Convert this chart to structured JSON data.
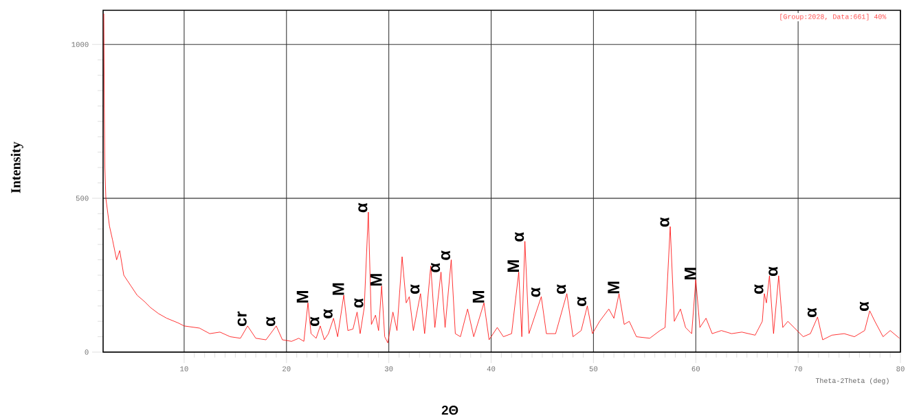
{
  "chart_data": {
    "type": "line",
    "xlabel": "2Θ",
    "ylabel": "Intensity",
    "xlim": [
      2.08,
      80
    ],
    "ylim": [
      0,
      1111
    ],
    "xticks": [
      10,
      20,
      30,
      40,
      50,
      60,
      70,
      80
    ],
    "yticks": [
      0,
      500,
      1000
    ],
    "grid": true,
    "line_style": "solid",
    "marker": "none",
    "series": [
      {
        "color": "#ff0000",
        "x": [
          2.15,
          2.2,
          2.25,
          2.35,
          2.7,
          3.0,
          3.4,
          3.7,
          4.1,
          4.5,
          4.8,
          5.4,
          6.1,
          6.7,
          7.5,
          8.3,
          9.4,
          10.0,
          11.5,
          12.5,
          13.5,
          14.5,
          15.5,
          16.2,
          17,
          18,
          19.0,
          19.6,
          20.5,
          21.2,
          21.7,
          22.1,
          22.4,
          22.9,
          23.3,
          23.7,
          24.1,
          24.6,
          25.0,
          25.6,
          26.0,
          26.5,
          26.9,
          27.2,
          27.6,
          28.0,
          28.3,
          28.7,
          29.0,
          29.3,
          29.6,
          29.9,
          30.4,
          30.8,
          31.3,
          31.7,
          32.0,
          32.4,
          33.1,
          33.5,
          34.1,
          34.5,
          35.1,
          35.5,
          36.1,
          36.5,
          37.0,
          37.7,
          38.3,
          39.3,
          39.8,
          40.6,
          41.2,
          42.0,
          42.7,
          43.0,
          43.3,
          43.7,
          44.9,
          45.4,
          46.3,
          47.4,
          48.0,
          48.8,
          49.4,
          49.9,
          50.6,
          51.5,
          52.0,
          52.5,
          53.0,
          53.5,
          54.2,
          55.5,
          56.5,
          57.0,
          57.5,
          57.9,
          58.5,
          59.0,
          59.6,
          60.0,
          60.4,
          61.0,
          61.6,
          62.5,
          63.5,
          64.5,
          65.8,
          66.5,
          66.7,
          66.9,
          67.2,
          67.6,
          68.1,
          68.5,
          69.0,
          69.6,
          70.5,
          71.2,
          71.9,
          72.4,
          73.3,
          74.5,
          75.5,
          76.5,
          77.0,
          77.5,
          78.3,
          79.0,
          79.9
        ],
        "values": [
          1100,
          790,
          600,
          500,
          410,
          365,
          300,
          330,
          250,
          230,
          215,
          185,
          165,
          145,
          125,
          110,
          95,
          85,
          78,
          60,
          65,
          50,
          45,
          85,
          45,
          40,
          85,
          40,
          35,
          45,
          35,
          160,
          60,
          45,
          85,
          40,
          60,
          110,
          50,
          185,
          70,
          75,
          130,
          60,
          145,
          455,
          90,
          120,
          70,
          215,
          50,
          30,
          130,
          70,
          310,
          160,
          180,
          70,
          190,
          60,
          280,
          80,
          260,
          80,
          300,
          60,
          50,
          140,
          50,
          160,
          40,
          80,
          50,
          60,
          260,
          50,
          360,
          60,
          180,
          60,
          60,
          190,
          50,
          70,
          150,
          60,
          100,
          140,
          110,
          190,
          90,
          100,
          50,
          45,
          70,
          80,
          408,
          100,
          140,
          80,
          60,
          235,
          80,
          110,
          60,
          70,
          60,
          65,
          55,
          100,
          190,
          160,
          248,
          60,
          248,
          80,
          100,
          80,
          50,
          60,
          114,
          40,
          55,
          60,
          50,
          70,
          134,
          100,
          50,
          70,
          45
        ]
      }
    ],
    "annotations": [
      "[Group:2028, Data:661] 40%",
      "Theta-2Theta (deg)",
      {
        "text": "cr",
        "x": 16.2,
        "y": 85
      },
      {
        "text": "α",
        "x": 19.0,
        "y": 85
      },
      {
        "text": "M",
        "x": 22.1,
        "y": 160
      },
      {
        "text": "α",
        "x": 23.3,
        "y": 85
      },
      {
        "text": "α",
        "x": 24.6,
        "y": 110
      },
      {
        "text": "M",
        "x": 25.6,
        "y": 185
      },
      {
        "text": "α",
        "x": 28.0,
        "y": 455
      },
      {
        "text": "α",
        "x": 27.6,
        "y": 145
      },
      {
        "text": "M",
        "x": 29.3,
        "y": 215
      },
      {
        "text": "α",
        "x": 33.1,
        "y": 190
      },
      {
        "text": "α",
        "x": 35.1,
        "y": 260
      },
      {
        "text": "α",
        "x": 36.1,
        "y": 300
      },
      {
        "text": "M",
        "x": 39.3,
        "y": 160
      },
      {
        "text": "M",
        "x": 42.7,
        "y": 260
      },
      {
        "text": "α",
        "x": 43.3,
        "y": 360
      },
      {
        "text": "α",
        "x": 44.9,
        "y": 180
      },
      {
        "text": "α",
        "x": 47.4,
        "y": 190
      },
      {
        "text": "α",
        "x": 49.4,
        "y": 150
      },
      {
        "text": "M",
        "x": 52.5,
        "y": 190
      },
      {
        "text": "α",
        "x": 57.5,
        "y": 408
      },
      {
        "text": "M",
        "x": 60.0,
        "y": 235
      },
      {
        "text": "α",
        "x": 66.7,
        "y": 190
      },
      {
        "text": "α",
        "x": 68.1,
        "y": 248
      },
      {
        "text": "α",
        "x": 71.9,
        "y": 114
      },
      {
        "text": "α",
        "x": 77.0,
        "y": 134
      }
    ]
  }
}
